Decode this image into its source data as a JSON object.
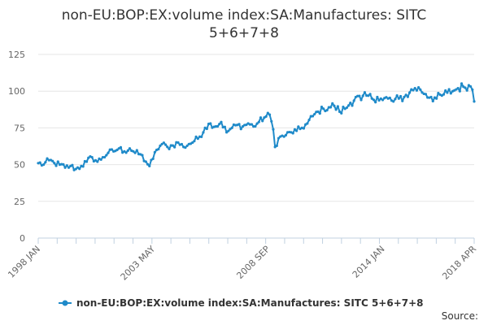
{
  "chart_data": {
    "type": "line",
    "title": "non-EU:BOP:EX:volume index:SA:Manufactures: SITC 5+6+7+8",
    "xlabel": "",
    "ylabel": "",
    "ylim": [
      0,
      125
    ],
    "yticks": [
      "0",
      "25",
      "50",
      "75",
      "100",
      "125"
    ],
    "xticks": [
      "1998 JAN",
      "2003 MAY",
      "2008 SEP",
      "2014 JAN",
      "2018 APR"
    ],
    "grid": "horizontal",
    "legend_position": "bottom",
    "series": [
      {
        "name": "non-EU:BOP:EX:volume index:SA:Manufactures: SITC 5+6+7+8",
        "color": "#1f8ac9",
        "x_start": "1998-01",
        "x_end": "2018-04",
        "anchors": [
          [
            "1998-01",
            51
          ],
          [
            "1998-04",
            50
          ],
          [
            "1998-07",
            53
          ],
          [
            "1998-10",
            51
          ],
          [
            "1999-01",
            50
          ],
          [
            "1999-04",
            48
          ],
          [
            "1999-07",
            49
          ],
          [
            "1999-10",
            47
          ],
          [
            "2000-01",
            49
          ],
          [
            "2000-04",
            52
          ],
          [
            "2000-07",
            55
          ],
          [
            "2000-10",
            52
          ],
          [
            "2001-01",
            55
          ],
          [
            "2001-04",
            58
          ],
          [
            "2001-07",
            59
          ],
          [
            "2001-10",
            61
          ],
          [
            "2002-01",
            59
          ],
          [
            "2002-04",
            61
          ],
          [
            "2002-07",
            58
          ],
          [
            "2002-10",
            57
          ],
          [
            "2003-01",
            52
          ],
          [
            "2003-03",
            49
          ],
          [
            "2003-05",
            54
          ],
          [
            "2003-07",
            60
          ],
          [
            "2003-10",
            64
          ],
          [
            "2004-01",
            62
          ],
          [
            "2004-04",
            63
          ],
          [
            "2004-07",
            65
          ],
          [
            "2004-10",
            62
          ],
          [
            "2005-01",
            64
          ],
          [
            "2005-04",
            66
          ],
          [
            "2005-07",
            69
          ],
          [
            "2005-10",
            75
          ],
          [
            "2006-01",
            78
          ],
          [
            "2006-04",
            76
          ],
          [
            "2006-07",
            79
          ],
          [
            "2006-10",
            72
          ],
          [
            "2007-01",
            75
          ],
          [
            "2007-04",
            77
          ],
          [
            "2007-07",
            76
          ],
          [
            "2007-10",
            78
          ],
          [
            "2008-01",
            76
          ],
          [
            "2008-04",
            79
          ],
          [
            "2008-07",
            82
          ],
          [
            "2008-10",
            84
          ],
          [
            "2008-12",
            74
          ],
          [
            "2009-01",
            62
          ],
          [
            "2009-03",
            68
          ],
          [
            "2009-07",
            70
          ],
          [
            "2009-10",
            72
          ],
          [
            "2010-01",
            73
          ],
          [
            "2010-04",
            75
          ],
          [
            "2010-07",
            78
          ],
          [
            "2010-10",
            83
          ],
          [
            "2011-01",
            86
          ],
          [
            "2011-04",
            88
          ],
          [
            "2011-07",
            89
          ],
          [
            "2011-10",
            90
          ],
          [
            "2012-01",
            86
          ],
          [
            "2012-04",
            88
          ],
          [
            "2012-07",
            92
          ],
          [
            "2012-10",
            96
          ],
          [
            "2013-01",
            94
          ],
          [
            "2013-04",
            97
          ],
          [
            "2013-07",
            95
          ],
          [
            "2013-10",
            96
          ],
          [
            "2014-01",
            94
          ],
          [
            "2014-04",
            95
          ],
          [
            "2014-07",
            93
          ],
          [
            "2014-10",
            95
          ],
          [
            "2015-01",
            96
          ],
          [
            "2015-04",
            99
          ],
          [
            "2015-07",
            102
          ],
          [
            "2015-10",
            101
          ],
          [
            "2016-01",
            98
          ],
          [
            "2016-04",
            96
          ],
          [
            "2016-07",
            95
          ],
          [
            "2016-10",
            97
          ],
          [
            "2017-01",
            99
          ],
          [
            "2017-04",
            100
          ],
          [
            "2017-07",
            102
          ],
          [
            "2017-10",
            103
          ],
          [
            "2018-01",
            104
          ],
          [
            "2018-03",
            101
          ],
          [
            "2018-04",
            93
          ]
        ]
      }
    ]
  },
  "legend": {
    "label": "non-EU:BOP:EX:volume index:SA:Manufactures: SITC 5+6+7+8"
  },
  "footer": {
    "source": "Source:"
  }
}
